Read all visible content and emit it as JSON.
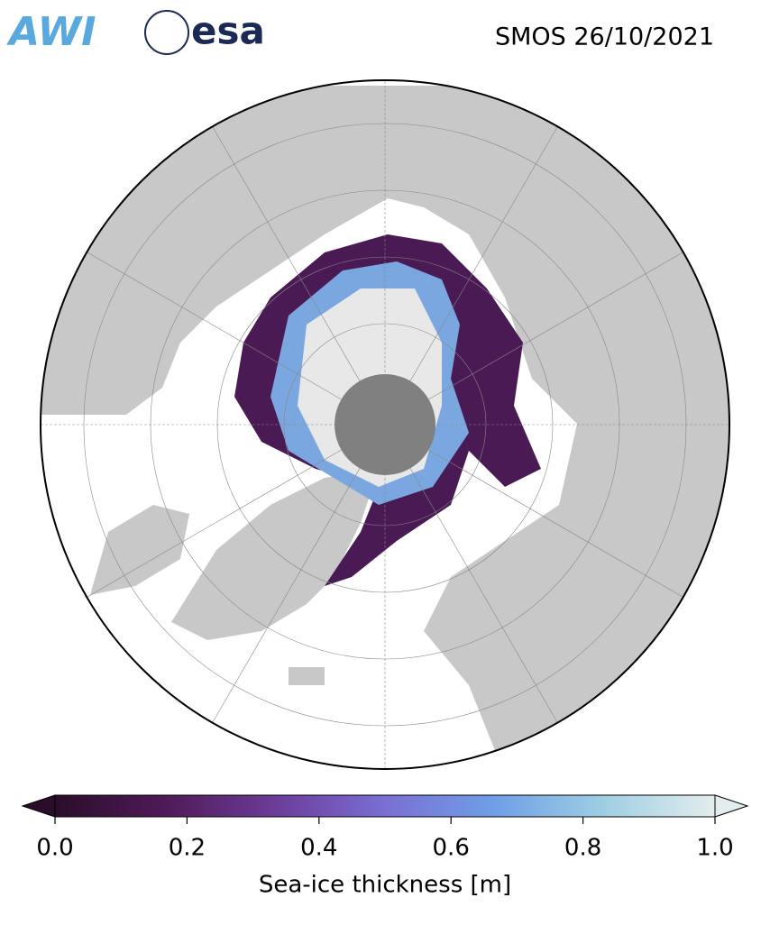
{
  "header": {
    "logos": [
      "AWI",
      "esa"
    ],
    "title": "SMOS 26/10/2021"
  },
  "colorbar": {
    "range": [
      0,
      1
    ],
    "ticks": [
      {
        "value": 0,
        "label": "0.0"
      },
      0.2,
      0.4,
      0.6,
      0.8,
      {
        "value": 1,
        "label": "1.0"
      }
    ],
    "label": "Sea-ice thickness [m]",
    "colors": [
      "#2a0d2a",
      "#4f1a58",
      "#6c3c98",
      "#7a6fd4",
      "#6f9fe6",
      "#9fcfe3",
      "#e3eded"
    ]
  }
}
